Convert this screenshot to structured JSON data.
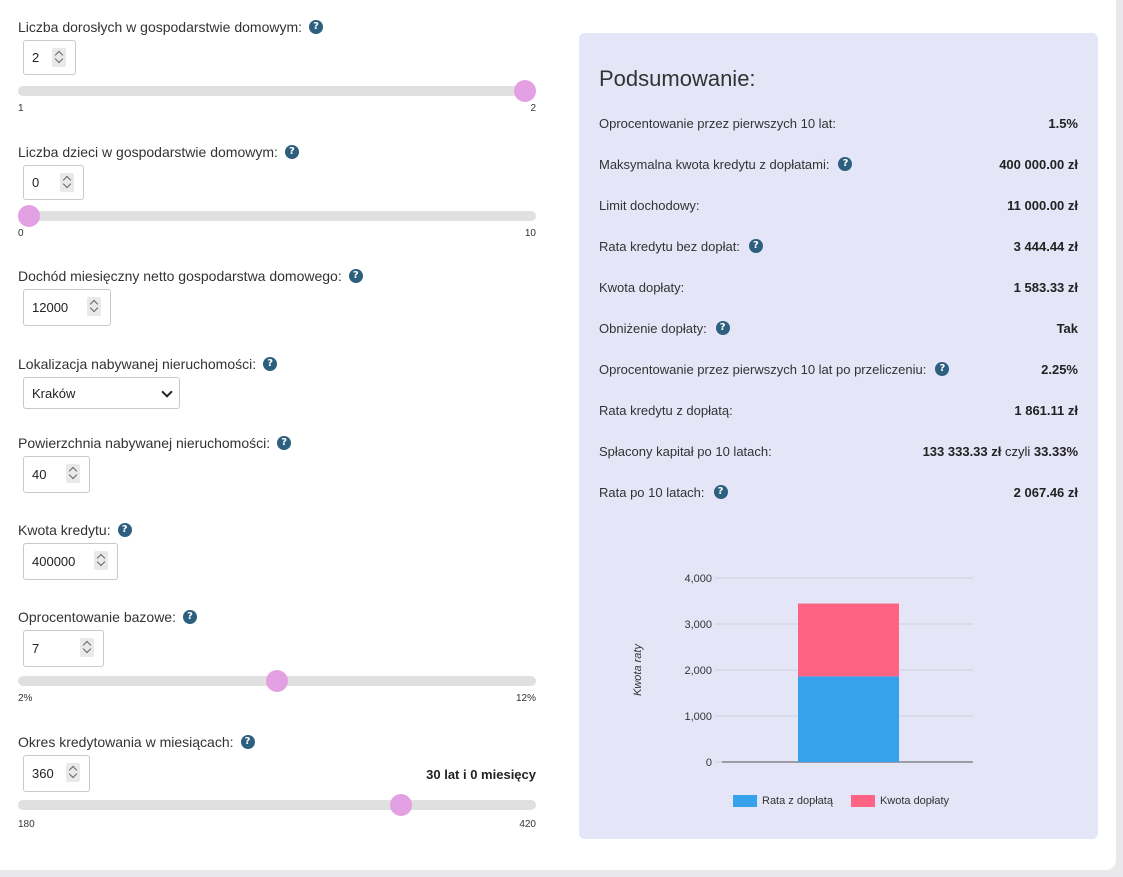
{
  "form": {
    "adults": {
      "label": "Liczba dorosłych w gospodarstwie domowym:",
      "value": "2",
      "min_label": "1",
      "max_label": "2",
      "fraction": 1.0
    },
    "children": {
      "label": "Liczba dzieci w gospodarstwie domowym:",
      "value": "0",
      "min_label": "0",
      "max_label": "10",
      "fraction": 0.0
    },
    "income": {
      "label": "Dochód miesięczny netto gospodarstwa domowego:",
      "value": "12000"
    },
    "location": {
      "label": "Lokalizacja nabywanej nieruchomości:",
      "value": "Kraków"
    },
    "area": {
      "label": "Powierzchnia nabywanej nieruchomości:",
      "value": "40"
    },
    "loan": {
      "label": "Kwota kredytu:",
      "value": "400000"
    },
    "rate": {
      "label": "Oprocentowanie bazowe:",
      "value": "7",
      "min_label": "2%",
      "max_label": "12%",
      "fraction": 0.5
    },
    "period": {
      "label": "Okres kredytowania w miesiącach:",
      "value": "360",
      "duration": "30 lat i 0 miesięcy",
      "min_label": "180",
      "max_label": "420",
      "fraction": 0.75
    }
  },
  "summary": {
    "title": "Podsumowanie:",
    "rows": [
      {
        "label": "Oprocentowanie przez pierwszych 10 lat:",
        "value": "1.5%",
        "help": false
      },
      {
        "label": "Maksymalna kwota kredytu z dopłatami:",
        "value": "400 000.00 zł",
        "help": true
      },
      {
        "label": "Limit dochodowy:",
        "value": "11 000.00 zł",
        "help": false
      },
      {
        "label": "Rata kredytu bez dopłat:",
        "value": "3 444.44 zł",
        "help": true
      },
      {
        "label": "Kwota dopłaty:",
        "value": "1 583.33 zł",
        "help": false
      },
      {
        "label": "Obniżenie dopłaty:",
        "value": "Tak",
        "help": true
      },
      {
        "label": "Oprocentowanie przez pierwszych 10 lat po przeliczeniu:",
        "value": "2.25%",
        "help": true
      },
      {
        "label": "Rata kredytu z dopłatą:",
        "value": "1 861.11 zł",
        "help": false
      },
      {
        "label": "Spłacony kapitał po 10 latach:",
        "value": "133 333.33 zł",
        "value_mid": "czyli",
        "value_end": "33.33%",
        "help": false
      },
      {
        "label": "Rata po 10 latach:",
        "value": "2 067.46 zł",
        "help": true
      }
    ]
  },
  "help_glyph": "?",
  "colors": {
    "accent": "#2d5f7e",
    "thumb": "#e3a0e2",
    "panel": "#e5e5f8",
    "series1": "#36a2eb",
    "series2": "#ff6384"
  },
  "chart_data": {
    "type": "bar",
    "stacked": true,
    "categories": [
      ""
    ],
    "ylabel": "Kwota raty",
    "ylim": [
      0,
      4000
    ],
    "yticks": [
      "0",
      "1,000",
      "2,000",
      "3,000",
      "4,000"
    ],
    "series": [
      {
        "name": "Rata z dopłatą",
        "values": [
          1861.11
        ],
        "color": "#36a2eb"
      },
      {
        "name": "Kwota dopłaty",
        "values": [
          1583.33
        ],
        "color": "#ff6384"
      }
    ],
    "grid": true,
    "legend": "bottom"
  }
}
